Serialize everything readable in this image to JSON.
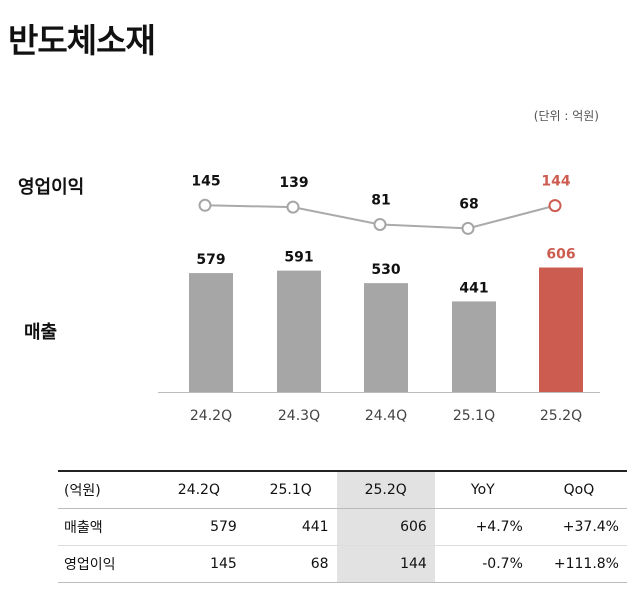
{
  "title": "반도체소재",
  "unit": "(단위 : 억원)",
  "labels": {
    "op": "영업이익",
    "rev": "매출"
  },
  "colors": {
    "bar": "#a6a6a6",
    "highlight": "#cd5c50",
    "line": "#aaaaaa",
    "marker": "#a6a6a6"
  },
  "chart_data": {
    "type": "bar",
    "categories": [
      "24.2Q",
      "24.3Q",
      "24.4Q",
      "25.1Q",
      "25.2Q"
    ],
    "series": [
      {
        "name": "매출",
        "type": "bar",
        "values": [
          579,
          591,
          530,
          441,
          606
        ]
      },
      {
        "name": "영업이익",
        "type": "line",
        "values": [
          145,
          139,
          81,
          68,
          144
        ]
      }
    ],
    "highlight_index": 4,
    "grid": false,
    "legend": "none"
  },
  "table": {
    "header": [
      "(억원)",
      "24.2Q",
      "25.1Q",
      "25.2Q",
      "YoY",
      "QoQ"
    ],
    "rows": [
      [
        "매출액",
        "579",
        "441",
        "606",
        "+4.7%",
        "+37.4%"
      ],
      [
        "영업이익",
        "145",
        "68",
        "144",
        "-0.7%",
        "+111.8%"
      ]
    ]
  }
}
